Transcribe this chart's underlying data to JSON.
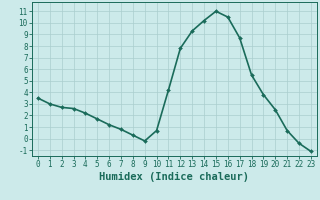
{
  "x": [
    0,
    1,
    2,
    3,
    4,
    5,
    6,
    7,
    8,
    9,
    10,
    11,
    12,
    13,
    14,
    15,
    16,
    17,
    18,
    19,
    20,
    21,
    22,
    23
  ],
  "y": [
    3.5,
    3.0,
    2.7,
    2.6,
    2.2,
    1.7,
    1.2,
    0.8,
    0.3,
    -0.2,
    0.7,
    4.2,
    7.8,
    9.3,
    10.2,
    11.0,
    10.5,
    8.7,
    5.5,
    3.8,
    2.5,
    0.7,
    -0.4,
    -1.1
  ],
  "line_color": "#1a6b5a",
  "marker": "D",
  "marker_size": 2.0,
  "bg_color": "#cceaea",
  "grid_color": "#aacece",
  "xlabel": "Humidex (Indice chaleur)",
  "ylim": [
    -1.5,
    11.8
  ],
  "xlim": [
    -0.5,
    23.5
  ],
  "yticks": [
    -1,
    0,
    1,
    2,
    3,
    4,
    5,
    6,
    7,
    8,
    9,
    10,
    11
  ],
  "xticks": [
    0,
    1,
    2,
    3,
    4,
    5,
    6,
    7,
    8,
    9,
    10,
    11,
    12,
    13,
    14,
    15,
    16,
    17,
    18,
    19,
    20,
    21,
    22,
    23
  ],
  "tick_label_fontsize": 5.5,
  "xlabel_fontsize": 7.5,
  "line_width": 1.2
}
